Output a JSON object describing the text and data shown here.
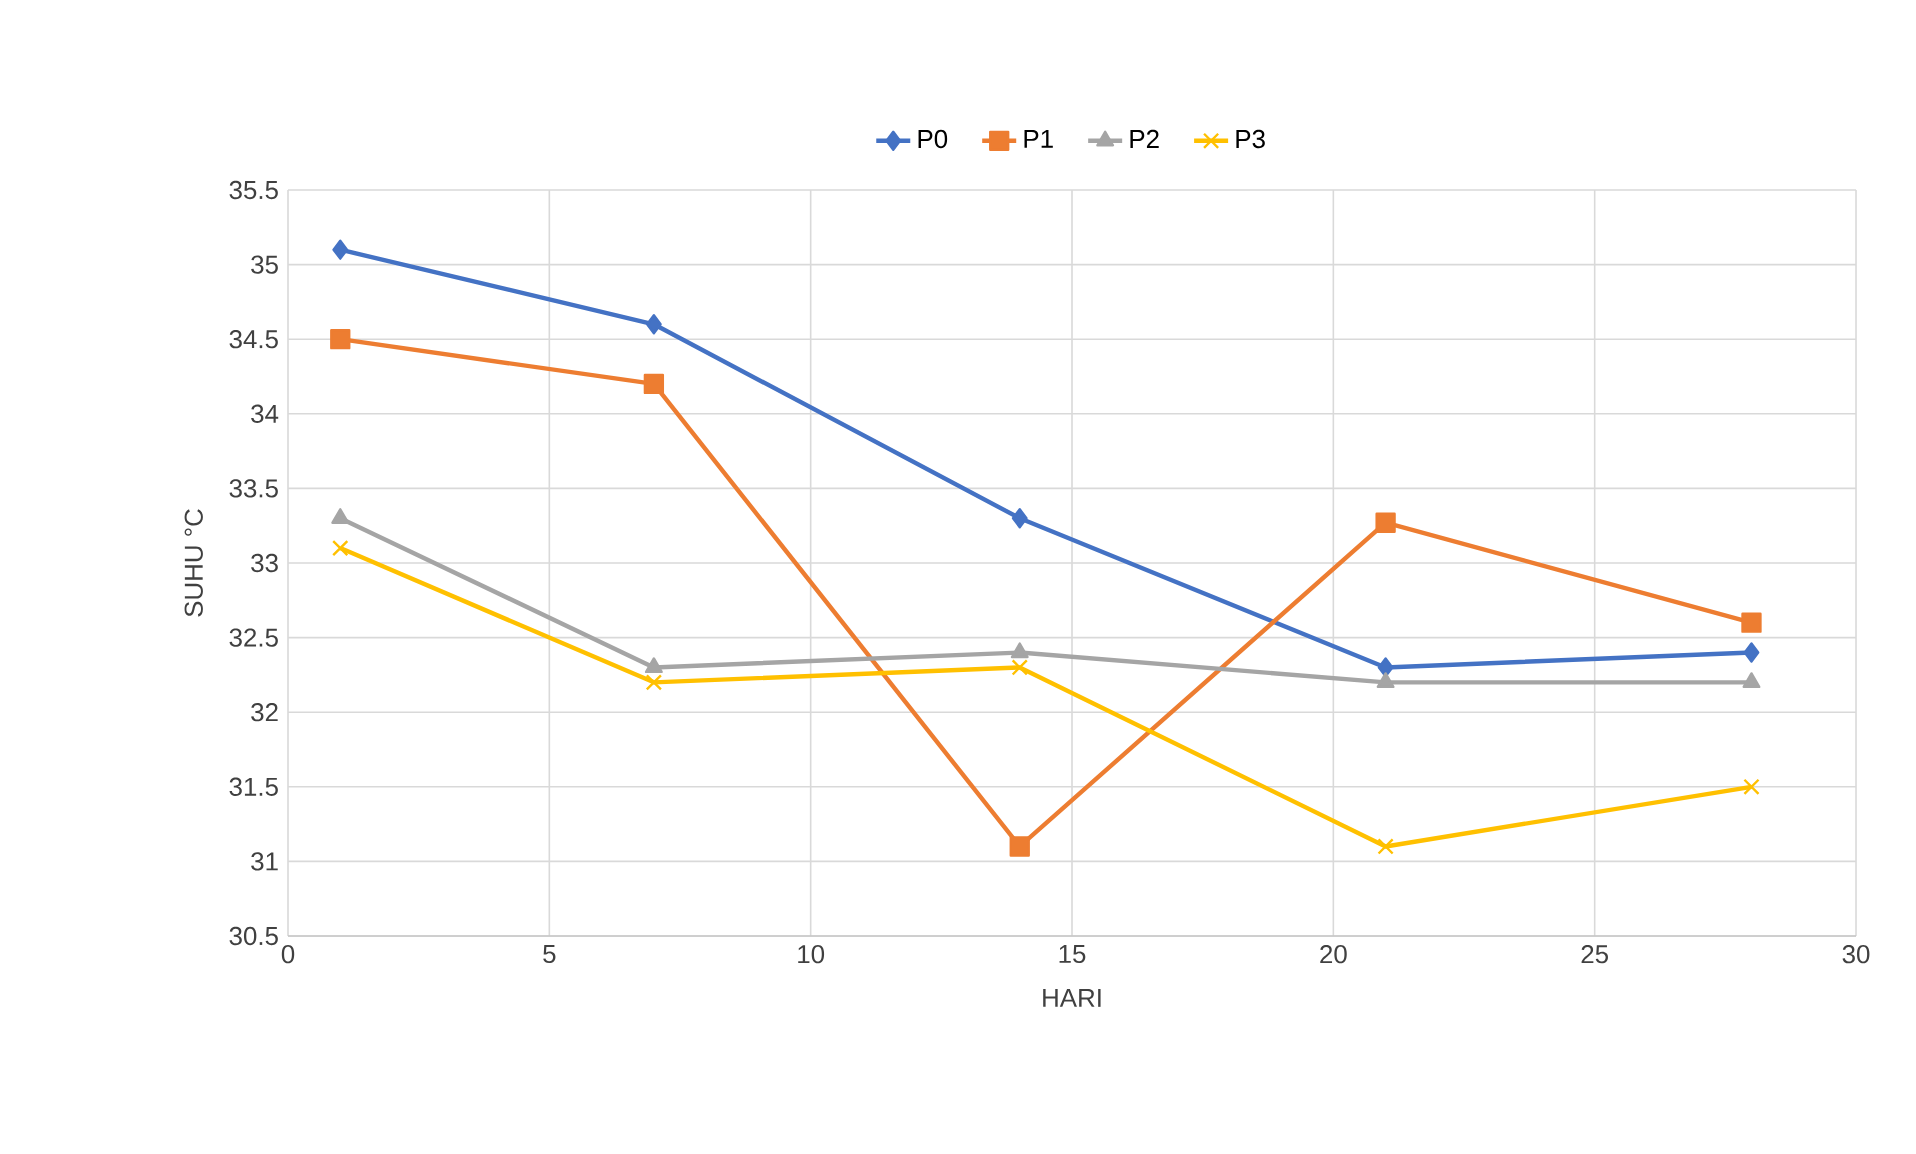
{
  "chart_data": {
    "type": "line",
    "xlabel": "HARI",
    "ylabel": "SUHU °C",
    "x": [
      1,
      7,
      14,
      21,
      28
    ],
    "series": [
      {
        "name": "P0",
        "color": "#4472c4",
        "marker": "diamond",
        "values": [
          35.1,
          34.6,
          33.3,
          32.3,
          32.4
        ]
      },
      {
        "name": "P1",
        "color": "#ed7d31",
        "marker": "square",
        "values": [
          34.5,
          34.2,
          31.1,
          33.27,
          32.6
        ]
      },
      {
        "name": "P2",
        "color": "#a5a5a5",
        "marker": "triangle",
        "values": [
          33.3,
          32.3,
          32.4,
          32.2,
          32.2
        ]
      },
      {
        "name": "P3",
        "color": "#ffc000",
        "marker": "cross",
        "values": [
          33.1,
          32.2,
          32.3,
          31.1,
          31.5
        ]
      }
    ],
    "xlim": [
      0,
      30
    ],
    "xticks": [
      0,
      5,
      10,
      15,
      20,
      25,
      30
    ],
    "ylim": [
      30.5,
      35.5
    ],
    "yticks": [
      30.5,
      31,
      31.5,
      32,
      32.5,
      33,
      33.5,
      34,
      34.5,
      35,
      35.5
    ],
    "grid": true,
    "legend": "top",
    "line_style": "solid"
  }
}
